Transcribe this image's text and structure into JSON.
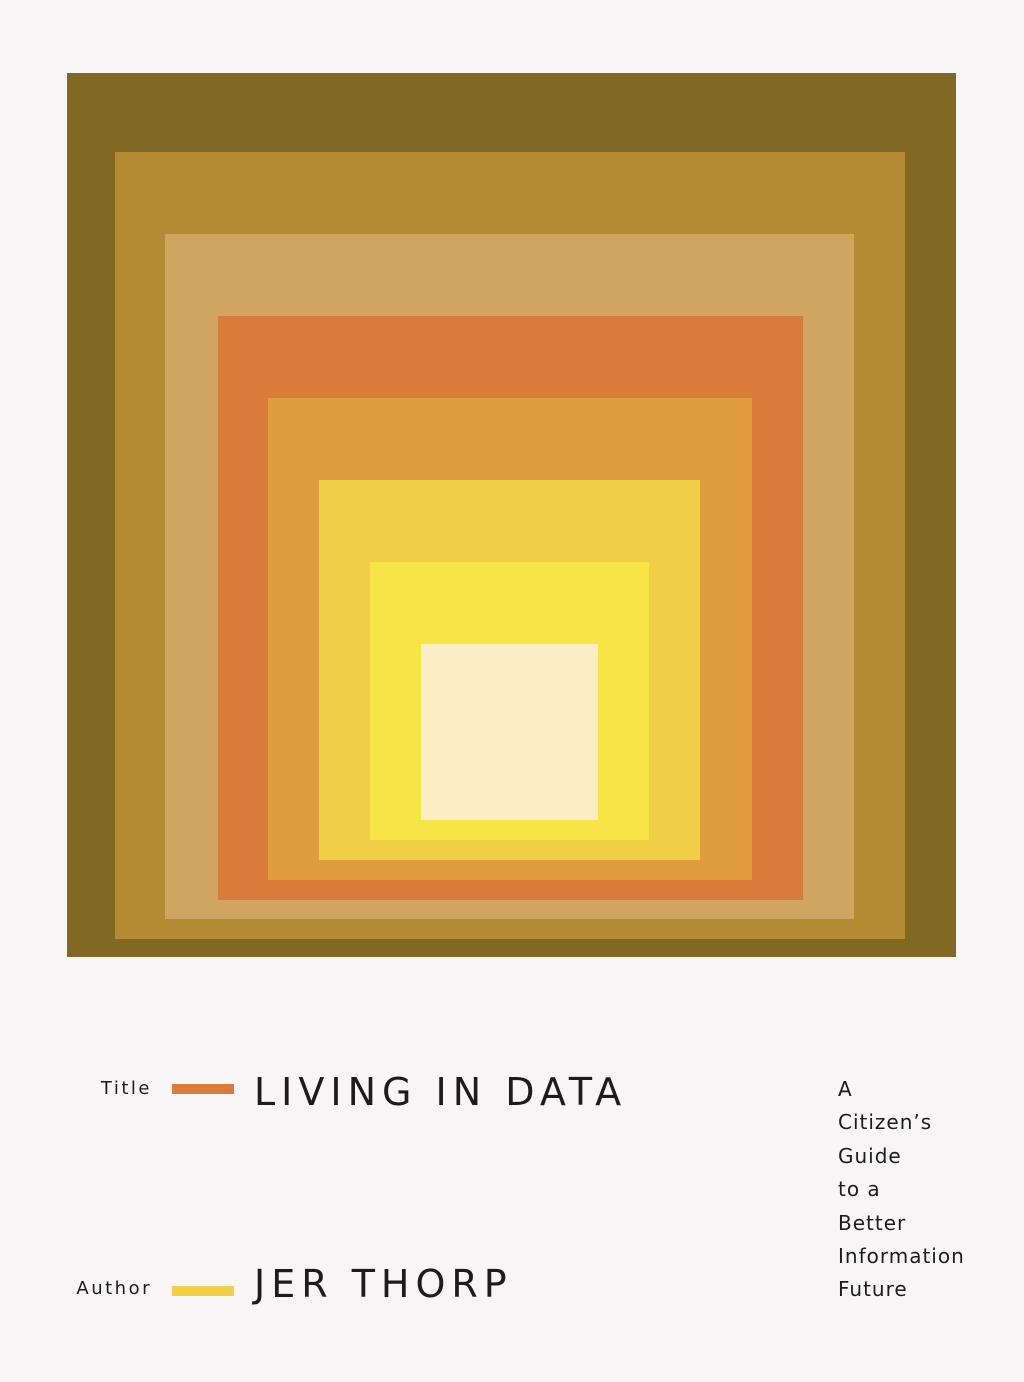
{
  "cover": {
    "background_color": "#f7f5f5",
    "text_color": "#1f1b1c",
    "artwork": {
      "squares": [
        {
          "color": "#826923"
        },
        {
          "color": "#b48a33"
        },
        {
          "color": "#d0a561"
        },
        {
          "color": "#d97c3b"
        },
        {
          "color": "#e09d3d"
        },
        {
          "color": "#f0ce46"
        },
        {
          "color": "#f7e547"
        },
        {
          "color": "#fbedc6"
        }
      ]
    },
    "title": {
      "label": "Title",
      "rule_color": "#d97c3b",
      "text": "LIVING IN DATA"
    },
    "author": {
      "label": "Author",
      "rule_color": "#f0ce46",
      "text": "JER THORP"
    },
    "subtitle_lines": [
      "A",
      "Citizen’s",
      "Guide",
      "to a",
      "Better",
      "Information",
      "Future"
    ]
  }
}
